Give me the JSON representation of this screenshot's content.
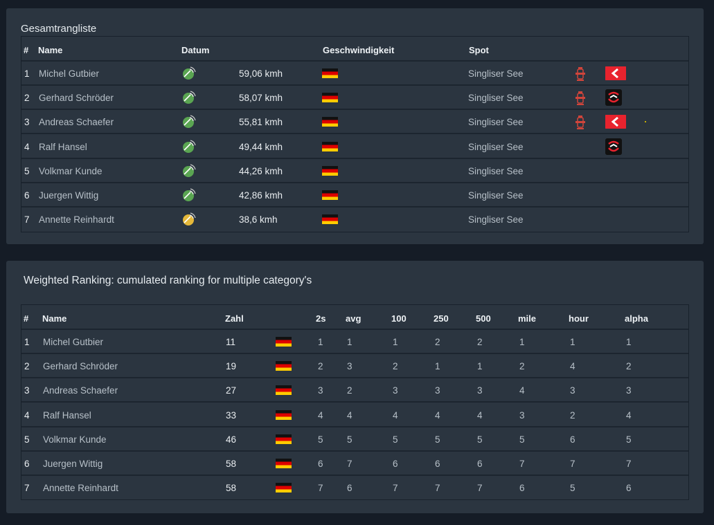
{
  "panel1": {
    "title": "Gesamtrangliste",
    "headers": {
      "rank": "#",
      "name": "Name",
      "datum": "Datum",
      "speed": "Geschwindigkeit",
      "spot": "Spot"
    },
    "rows": [
      {
        "rank": "1",
        "name": "Michel Gutbier",
        "speed": "59,06 kmh",
        "spot": "Singliser See",
        "dish": "green",
        "hydrant": true,
        "badge": "red"
      },
      {
        "rank": "2",
        "name": "Gerhard Schröder",
        "speed": "58,07 kmh",
        "spot": "Singliser See",
        "dish": "green",
        "hydrant": true,
        "badge": "dark"
      },
      {
        "rank": "3",
        "name": "Andreas Schaefer",
        "speed": "55,81 kmh",
        "spot": "Singliser See",
        "dish": "green",
        "hydrant": true,
        "badge": "red"
      },
      {
        "rank": "4",
        "name": "Ralf Hansel",
        "speed": "49,44 kmh",
        "spot": "Singliser See",
        "dish": "green",
        "hydrant": false,
        "badge": "dark"
      },
      {
        "rank": "5",
        "name": "Volkmar Kunde",
        "speed": "44,26 kmh",
        "spot": "Singliser See",
        "dish": "green",
        "hydrant": false,
        "badge": ""
      },
      {
        "rank": "6",
        "name": "Juergen Wittig",
        "speed": "42,86 kmh",
        "spot": "Singliser See",
        "dish": "green",
        "hydrant": false,
        "badge": ""
      },
      {
        "rank": "7",
        "name": "Annette Reinhardt",
        "speed": "38,6 kmh",
        "spot": "Singliser See",
        "dish": "yellow",
        "hydrant": false,
        "badge": ""
      }
    ]
  },
  "panel2": {
    "title": "Weighted Ranking: cumulated ranking for multiple category's",
    "headers": {
      "rank": "#",
      "name": "Name",
      "zahl": "Zahl",
      "c2s": "2s",
      "avg": "avg",
      "c100": "100",
      "c250": "250",
      "c500": "500",
      "mile": "mile",
      "hour": "hour",
      "alpha": "alpha"
    },
    "rows": [
      {
        "rank": "1",
        "name": "Michel Gutbier",
        "zahl": "11",
        "vals": [
          "1",
          "1",
          "1",
          "2",
          "2",
          "1",
          "1",
          "1"
        ]
      },
      {
        "rank": "2",
        "name": "Gerhard Schröder",
        "zahl": "19",
        "vals": [
          "2",
          "3",
          "2",
          "1",
          "1",
          "2",
          "4",
          "2"
        ]
      },
      {
        "rank": "3",
        "name": "Andreas Schaefer",
        "zahl": "27",
        "vals": [
          "3",
          "2",
          "3",
          "3",
          "3",
          "4",
          "3",
          "3"
        ]
      },
      {
        "rank": "4",
        "name": "Ralf Hansel",
        "zahl": "33",
        "vals": [
          "4",
          "4",
          "4",
          "4",
          "4",
          "3",
          "2",
          "4"
        ]
      },
      {
        "rank": "5",
        "name": "Volkmar Kunde",
        "zahl": "46",
        "vals": [
          "5",
          "5",
          "5",
          "5",
          "5",
          "5",
          "6",
          "5"
        ]
      },
      {
        "rank": "6",
        "name": "Juergen Wittig",
        "zahl": "58",
        "vals": [
          "6",
          "7",
          "6",
          "6",
          "6",
          "7",
          "7",
          "7"
        ]
      },
      {
        "rank": "7",
        "name": "Annette Reinhardt",
        "zahl": "58",
        "vals": [
          "7",
          "6",
          "7",
          "7",
          "7",
          "6",
          "5",
          "6"
        ]
      }
    ]
  },
  "colors": {
    "background": "#151c26",
    "panel": "#2b3540",
    "dish_green": "#5aa552",
    "dish_yellow": "#e5b83a",
    "badge_red": "#e8232e"
  }
}
